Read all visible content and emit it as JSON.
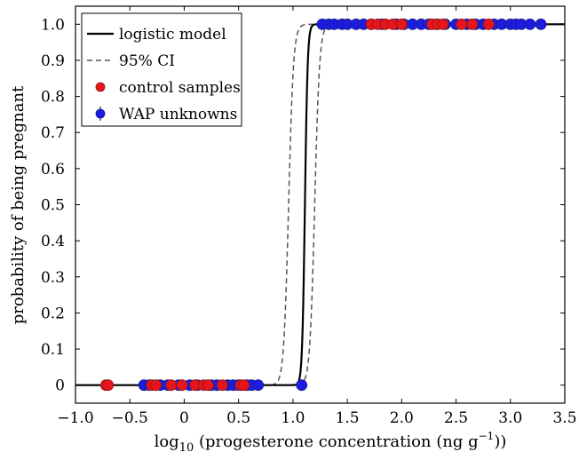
{
  "chart_data": {
    "type": "scatter",
    "title": "",
    "xlabel": {
      "main": "log",
      "sub": "10",
      "rest": " (progesterone concentration (ng g",
      "sup": "−1",
      "end": "))"
    },
    "ylabel": "probability of being pregnant",
    "xlim": [
      -1.0,
      3.5
    ],
    "ylim": [
      -0.05,
      1.05
    ],
    "x_ticks": [
      -1.0,
      -0.5,
      0,
      0.5,
      1.0,
      1.5,
      2.0,
      2.5,
      3.0,
      3.5
    ],
    "x_tick_labels": [
      "−1.0",
      "−0.5",
      "0",
      "0.5",
      "1.0",
      "1.5",
      "2.0",
      "2.5",
      "3.0",
      "3.5"
    ],
    "y_ticks": [
      0,
      0.1,
      0.2,
      0.3,
      0.4,
      0.5,
      0.6,
      0.7,
      0.8,
      0.9,
      1.0
    ],
    "y_tick_labels": [
      "0",
      "0.1",
      "0.2",
      "0.3",
      "0.4",
      "0.5",
      "0.6",
      "0.7",
      "0.8",
      "0.9",
      "1.0"
    ],
    "grid": false,
    "legend_position": "top-left",
    "legend": [
      {
        "label": "logistic model",
        "style": "solid-line"
      },
      {
        "label": "95% CI",
        "style": "dashed-line"
      },
      {
        "label": "control samples",
        "style": "red-dot"
      },
      {
        "label": "WAP unknowns",
        "style": "blue-dot-errorbar"
      }
    ],
    "colors": {
      "model": "#000000",
      "ci": "#555555",
      "control": "#e8141c",
      "wap": "#1c1ce0",
      "marker_edge": "#1a1a8c"
    },
    "model": {
      "midpoint": 1.11,
      "steepness": 80
    },
    "ci_lower": {
      "midpoint": 0.96,
      "steepness": 45
    },
    "ci_upper": {
      "midpoint": 1.2,
      "steepness": 45
    },
    "series": [
      {
        "name": "WAP unknowns",
        "points": [
          {
            "x": -0.37,
            "y": 0
          },
          {
            "x": -0.32,
            "y": 0
          },
          {
            "x": -0.22,
            "y": 0
          },
          {
            "x": -0.15,
            "y": 0
          },
          {
            "x": -0.05,
            "y": 0
          },
          {
            "x": 0.05,
            "y": 0
          },
          {
            "x": 0.12,
            "y": 0
          },
          {
            "x": 0.25,
            "y": 0
          },
          {
            "x": 0.3,
            "y": 0
          },
          {
            "x": 0.4,
            "y": 0
          },
          {
            "x": 0.45,
            "y": 0
          },
          {
            "x": 0.5,
            "y": 0
          },
          {
            "x": 0.58,
            "y": 0
          },
          {
            "x": 0.62,
            "y": 0
          },
          {
            "x": 0.68,
            "y": 0
          },
          {
            "x": 1.08,
            "y": 0
          },
          {
            "x": 1.27,
            "y": 1
          },
          {
            "x": 1.33,
            "y": 1
          },
          {
            "x": 1.38,
            "y": 1
          },
          {
            "x": 1.45,
            "y": 1
          },
          {
            "x": 1.5,
            "y": 1
          },
          {
            "x": 1.58,
            "y": 1
          },
          {
            "x": 1.65,
            "y": 1
          },
          {
            "x": 1.72,
            "y": 1
          },
          {
            "x": 1.82,
            "y": 1
          },
          {
            "x": 1.95,
            "y": 1
          },
          {
            "x": 2.02,
            "y": 1
          },
          {
            "x": 2.1,
            "y": 1
          },
          {
            "x": 2.18,
            "y": 1
          },
          {
            "x": 2.25,
            "y": 1
          },
          {
            "x": 2.32,
            "y": 1
          },
          {
            "x": 2.4,
            "y": 1
          },
          {
            "x": 2.5,
            "y": 1
          },
          {
            "x": 2.6,
            "y": 1
          },
          {
            "x": 2.68,
            "y": 1
          },
          {
            "x": 2.75,
            "y": 1
          },
          {
            "x": 2.85,
            "y": 1
          },
          {
            "x": 2.92,
            "y": 1
          },
          {
            "x": 3.0,
            "y": 1
          },
          {
            "x": 3.05,
            "y": 1
          },
          {
            "x": 3.1,
            "y": 1
          },
          {
            "x": 3.18,
            "y": 1
          },
          {
            "x": 3.28,
            "y": 1
          }
        ]
      },
      {
        "name": "control samples",
        "points": [
          {
            "x": -0.72,
            "y": 0
          },
          {
            "x": -0.7,
            "y": 0
          },
          {
            "x": -0.3,
            "y": 0
          },
          {
            "x": -0.26,
            "y": 0
          },
          {
            "x": -0.12,
            "y": 0
          },
          {
            "x": -0.02,
            "y": 0
          },
          {
            "x": 0.1,
            "y": 0
          },
          {
            "x": 0.18,
            "y": 0
          },
          {
            "x": 0.22,
            "y": 0
          },
          {
            "x": 0.35,
            "y": 0
          },
          {
            "x": 0.52,
            "y": 0
          },
          {
            "x": 0.55,
            "y": 0
          },
          {
            "x": 1.72,
            "y": 1
          },
          {
            "x": 1.78,
            "y": 1
          },
          {
            "x": 1.85,
            "y": 1
          },
          {
            "x": 1.92,
            "y": 1
          },
          {
            "x": 2.0,
            "y": 1
          },
          {
            "x": 2.28,
            "y": 1
          },
          {
            "x": 2.33,
            "y": 1
          },
          {
            "x": 2.38,
            "y": 1
          },
          {
            "x": 2.55,
            "y": 1
          },
          {
            "x": 2.65,
            "y": 1
          },
          {
            "x": 2.8,
            "y": 1
          }
        ]
      }
    ]
  }
}
